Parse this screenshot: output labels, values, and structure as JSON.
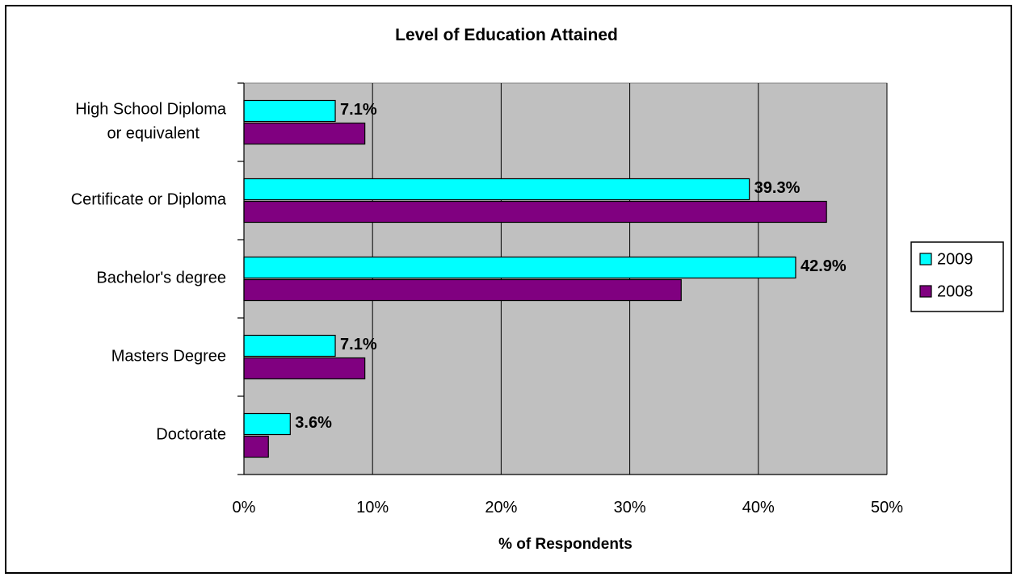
{
  "chart_data": {
    "type": "bar",
    "orientation": "horizontal",
    "title": "Level of Education Attained",
    "xlabel": "% of Respondents",
    "ylabel": "",
    "categories": [
      [
        "High School Diploma",
        "or equivalent"
      ],
      [
        "Certificate or Diploma"
      ],
      [
        "Bachelor's degree"
      ],
      [
        "Masters Degree"
      ],
      [
        "Doctorate"
      ]
    ],
    "series": [
      {
        "name": "2009",
        "color": "#00ffff",
        "values": [
          7.1,
          39.3,
          42.9,
          7.1,
          3.6
        ],
        "data_labels": [
          "7.1%",
          "39.3%",
          "42.9%",
          "7.1%",
          "3.6%"
        ]
      },
      {
        "name": "2008",
        "color": "#800080",
        "values": [
          9.4,
          45.3,
          34.0,
          9.4,
          1.9
        ]
      }
    ],
    "xlim": [
      0,
      50
    ],
    "xticks": [
      "0%",
      "10%",
      "20%",
      "30%",
      "40%",
      "50%"
    ],
    "grid": "vertical",
    "plot_background": "#c0c0c0",
    "legend_position": "right"
  }
}
